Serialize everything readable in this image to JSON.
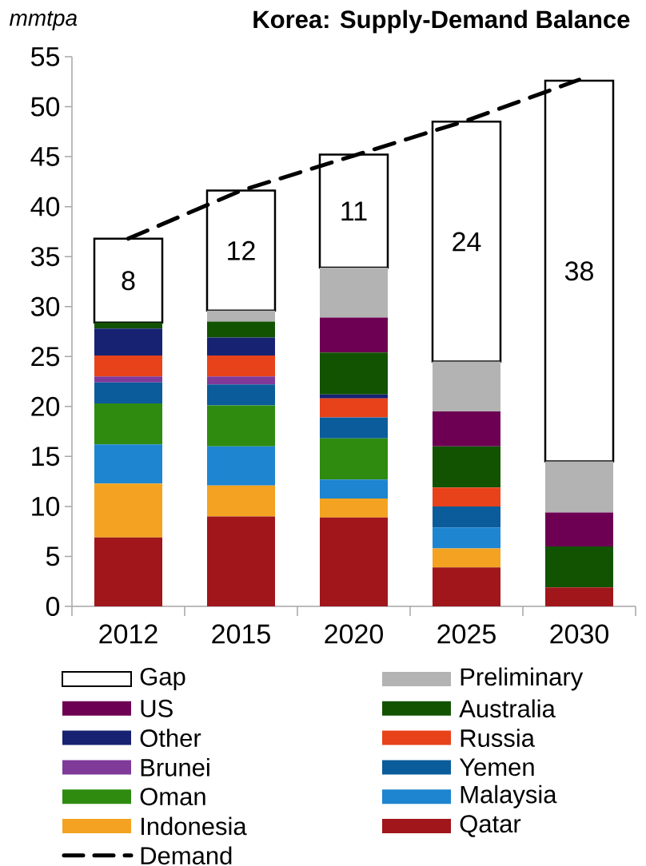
{
  "chart_data": {
    "type": "bar",
    "stacked": true,
    "title": "Korea: Supply-Demand Balance",
    "ylabel": "mmtpa",
    "categories": [
      "2012",
      "2015",
      "2020",
      "2025",
      "2030"
    ],
    "ylim": [
      0,
      55
    ],
    "yticks": [
      0,
      5,
      10,
      15,
      20,
      25,
      30,
      35,
      40,
      45,
      50,
      55
    ],
    "legend": "bottom",
    "series": [
      {
        "name": "Qatar",
        "color": "#a0161b",
        "values": [
          6.9,
          9.0,
          8.9,
          3.9,
          1.9
        ]
      },
      {
        "name": "Indonesia",
        "color": "#f3a321",
        "values": [
          5.4,
          3.1,
          1.9,
          1.9,
          0
        ]
      },
      {
        "name": "Malaysia",
        "color": "#1e85d0",
        "values": [
          3.9,
          3.9,
          1.9,
          2.1,
          0
        ]
      },
      {
        "name": "Oman",
        "color": "#2e8b10",
        "values": [
          4.1,
          4.1,
          4.1,
          0,
          0
        ]
      },
      {
        "name": "Yemen",
        "color": "#0b5c9a",
        "values": [
          2.1,
          2.1,
          2.1,
          2.1,
          0
        ]
      },
      {
        "name": "Brunei",
        "color": "#7f3a9a",
        "values": [
          0.6,
          0.8,
          0,
          0,
          0
        ]
      },
      {
        "name": "Russia",
        "color": "#e8421a",
        "values": [
          2.1,
          2.1,
          1.9,
          1.9,
          0
        ]
      },
      {
        "name": "Other",
        "color": "#172272",
        "values": [
          2.7,
          1.8,
          0.4,
          0,
          0
        ]
      },
      {
        "name": "Australia",
        "color": "#125302",
        "values": [
          0.6,
          1.6,
          4.2,
          4.1,
          4.1
        ]
      },
      {
        "name": "US",
        "color": "#6d0053",
        "values": [
          0,
          0,
          3.5,
          3.5,
          3.4
        ]
      },
      {
        "name": "Preliminary",
        "color": "#b3b3b3",
        "values": [
          0,
          1.1,
          5.0,
          5.0,
          5.1
        ]
      },
      {
        "name": "Gap",
        "color": "#ffffff",
        "values": [
          8.4,
          12.0,
          11.3,
          24.0,
          38.1
        ],
        "value_labels": [
          "8",
          "12",
          "11",
          "24",
          "38"
        ]
      },
      {
        "name": "Demand",
        "type": "line",
        "line_style": "dashed",
        "color": "#000000",
        "values": [
          36.8,
          41.6,
          45.1,
          48.6,
          52.7
        ]
      }
    ]
  }
}
